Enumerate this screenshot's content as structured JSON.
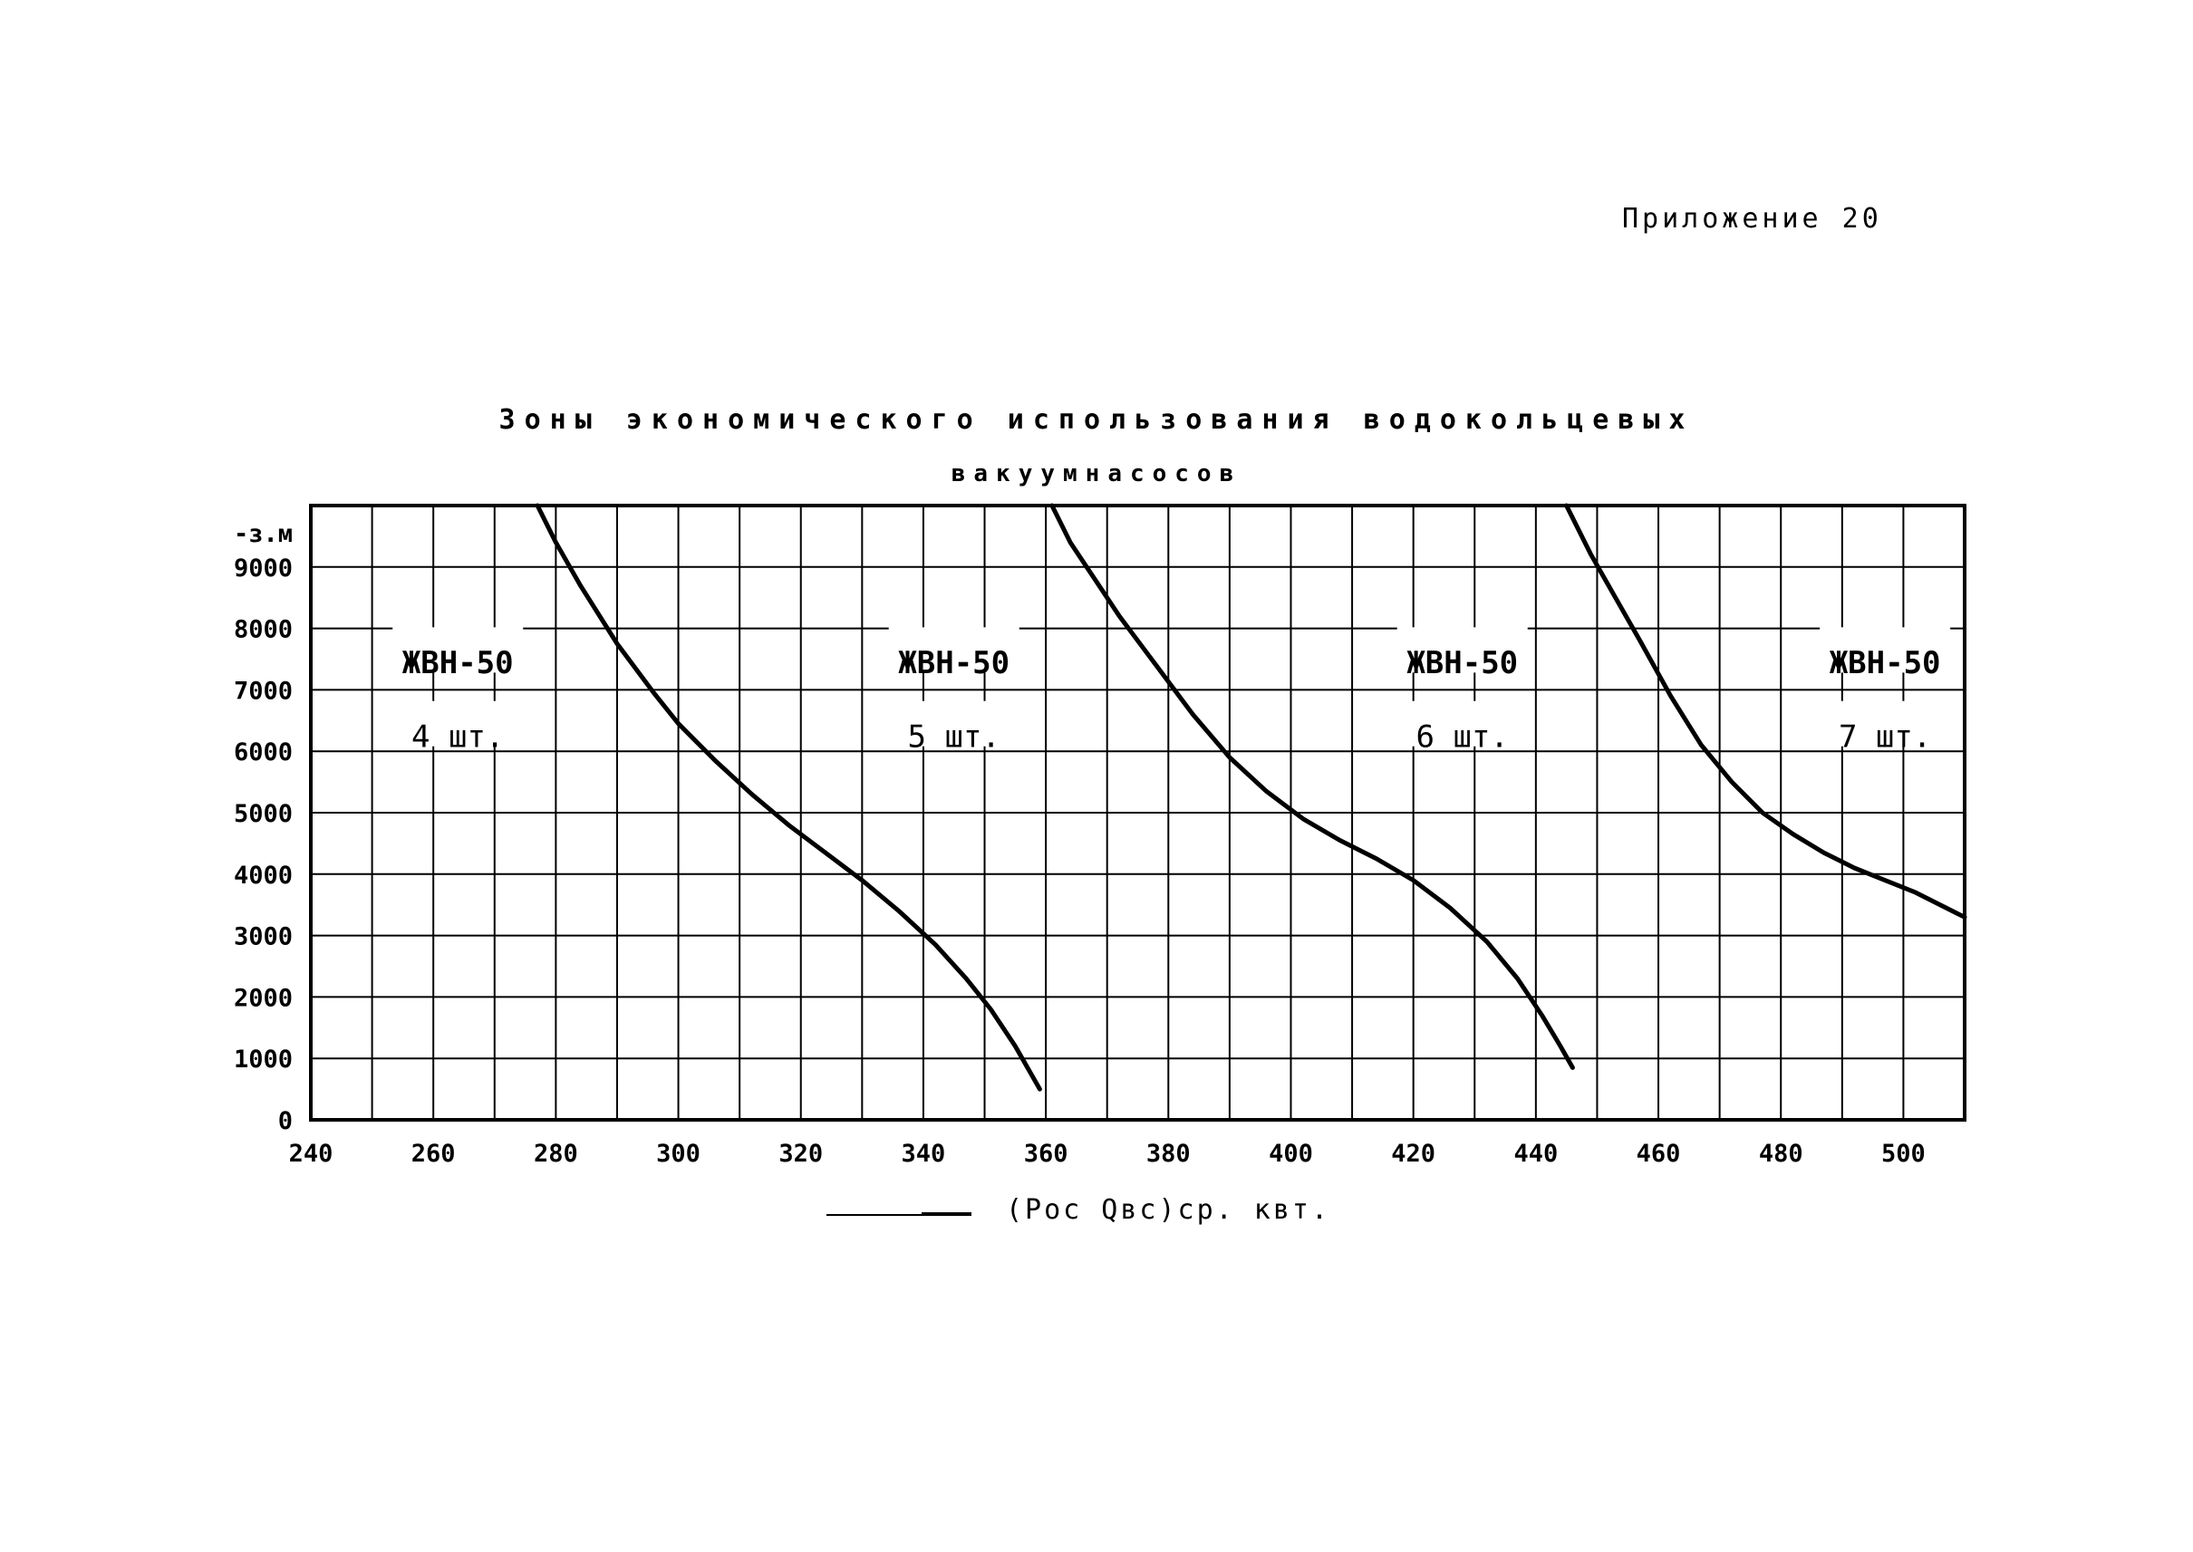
{
  "appendix_label": "Приложение 20",
  "chart_data": {
    "type": "line",
    "title": "Зоны экономического использования водокольцевых",
    "subtitle": "вакуумнасосов",
    "ylabel": "-з.м",
    "xlabel": "(Pос Qвс)ср. квт.",
    "x_ticks": [
      240,
      260,
      280,
      300,
      320,
      340,
      360,
      380,
      400,
      420,
      440,
      460,
      480,
      500
    ],
    "y_ticks": [
      0,
      1000,
      2000,
      3000,
      4000,
      5000,
      6000,
      7000,
      8000,
      9000
    ],
    "xlim": [
      240,
      510
    ],
    "ylim": [
      0,
      10000
    ],
    "grid": true,
    "series": [
      {
        "x": [
          277,
          280,
          284,
          290,
          296,
          300,
          306,
          312,
          318,
          324,
          330,
          336,
          342,
          347,
          351,
          355,
          359
        ],
        "y": [
          10000,
          9400,
          8700,
          7750,
          6950,
          6450,
          5850,
          5300,
          4800,
          4350,
          3900,
          3400,
          2850,
          2300,
          1800,
          1200,
          500
        ]
      },
      {
        "x": [
          361,
          364,
          368,
          372,
          378,
          384,
          390,
          396,
          402,
          408,
          414,
          420,
          426,
          432,
          437,
          441,
          444,
          446
        ],
        "y": [
          10000,
          9400,
          8800,
          8200,
          7400,
          6600,
          5900,
          5350,
          4900,
          4550,
          4250,
          3900,
          3450,
          2900,
          2300,
          1700,
          1200,
          850
        ]
      },
      {
        "x": [
          445,
          449,
          453,
          457,
          462,
          467,
          472,
          477,
          482,
          487,
          492,
          497,
          502,
          507,
          510
        ],
        "y": [
          10000,
          9200,
          8500,
          7800,
          6900,
          6100,
          5500,
          5000,
          4650,
          4350,
          4100,
          3900,
          3700,
          3450,
          3300
        ]
      }
    ],
    "zones": [
      {
        "label": "ЖВН-50",
        "count": "4 шт.",
        "x": 264
      },
      {
        "label": "ЖВН-50",
        "count": "5 шт.",
        "x": 345
      },
      {
        "label": "ЖВН-50",
        "count": "6 шт.",
        "x": 428
      },
      {
        "label": "ЖВН-50",
        "count": "7 шт.",
        "x": 497
      }
    ]
  }
}
